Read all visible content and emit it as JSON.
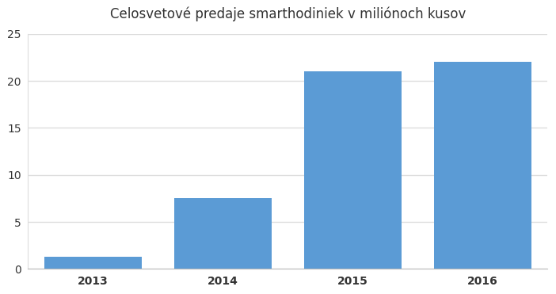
{
  "chart_data": {
    "type": "bar",
    "title": "Celosvetové predaje smarthodiniek v miliónoch kusov",
    "categories": [
      "2013",
      "2014",
      "2015",
      "2016"
    ],
    "values": [
      1.3,
      7.5,
      21,
      22
    ],
    "color": "#5b9bd5",
    "ylim": [
      0,
      25
    ],
    "yticks": [
      0,
      5,
      10,
      15,
      20,
      25
    ],
    "grid": true
  }
}
